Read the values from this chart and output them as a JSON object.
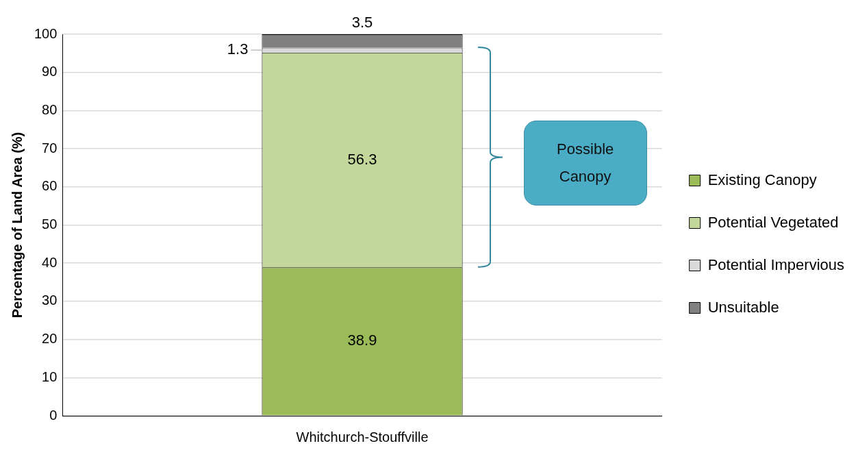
{
  "chart_data": {
    "type": "bar",
    "stacked": true,
    "ylabel": "Percentage of Land Area (%)",
    "categories": [
      "Whitchurch-Stouffville"
    ],
    "series": [
      {
        "name": "Existing Canopy",
        "color": "#9bbb59",
        "values": [
          38.9
        ]
      },
      {
        "name": "Potential Vegetated",
        "color": "#c4d79b",
        "values": [
          56.3
        ]
      },
      {
        "name": "Potential Impervious",
        "color": "#d9d9d9",
        "values": [
          1.3
        ]
      },
      {
        "name": "Unsuitable",
        "color": "#808080",
        "values": [
          3.5
        ]
      }
    ],
    "ylim": [
      0,
      100
    ],
    "yticks": [
      0,
      10,
      20,
      30,
      40,
      50,
      60,
      70,
      80,
      90,
      100
    ],
    "grid": "y",
    "legend": "right",
    "data_labels": true,
    "annotations": [
      "Possible Canopy"
    ]
  }
}
